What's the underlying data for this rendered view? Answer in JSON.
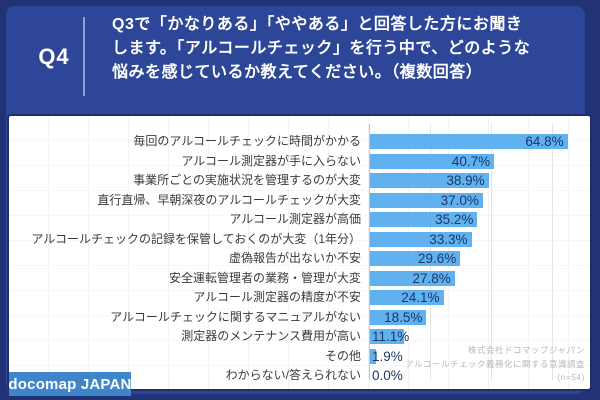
{
  "header": {
    "question_no": "Q4",
    "question_lines": [
      "Q3で「かなりある」「ややある」と回答した方にお聞き",
      "します。「アルコールチェック」を行う中で、どのような",
      "悩みを感じているか教えてください。（複数回答）"
    ]
  },
  "chart_data": {
    "type": "bar",
    "orientation": "horizontal",
    "title": "Q3で「かなりある」「ややある」と回答した方にお聞きします。「アルコールチェック」を行う中で、どのような悩みを感じているか教えてください。（複数回答）",
    "categories": [
      "毎回のアルコールチェックに時間がかかる",
      "アルコール測定器が手に入らない",
      "事業所ごとの実施状況を管理するのが大変",
      "直行直帰、早朝深夜のアルコールチェックが大変",
      "アルコール測定器が高価",
      "アルコールチェックの記録を保管しておくのが大変（1年分）",
      "虚偽報告が出ないか不安",
      "安全運転管理者の業務・管理が大変",
      "アルコール測定器の精度が不安",
      "アルコールチェックに関するマニュアルがない",
      "測定器のメンテナンス費用が高い",
      "その他",
      "わからない/答えられない"
    ],
    "values": [
      64.8,
      40.7,
      38.9,
      37.0,
      35.2,
      33.3,
      29.6,
      27.8,
      24.1,
      18.5,
      11.1,
      1.9,
      0.0
    ],
    "value_suffix": "%",
    "xlim": [
      0,
      72
    ],
    "xticks": [
      0,
      20,
      40,
      60
    ],
    "tick_labels_visible": false,
    "grid": "vertical-light",
    "legend": "none",
    "bar_color": "#5FB2EF",
    "value_label_color": "#1D3767"
  },
  "footer": {
    "logo_text": "docomap JAPAN",
    "credit_lines": [
      "株式会社ドコマップジャパン",
      "アルコールチェック義務化に関する意識調査",
      "(n=54)"
    ]
  },
  "colors": {
    "frame_background": "#223375",
    "panel_background": "#2E4697",
    "card_background": "#FFFFFF",
    "card_border": "#1F2F6E",
    "logo_background": "#3E86C9",
    "header_text": "#FFFFFF",
    "category_text": "#3B3B3B",
    "credit_text": "#B9B9B9"
  }
}
